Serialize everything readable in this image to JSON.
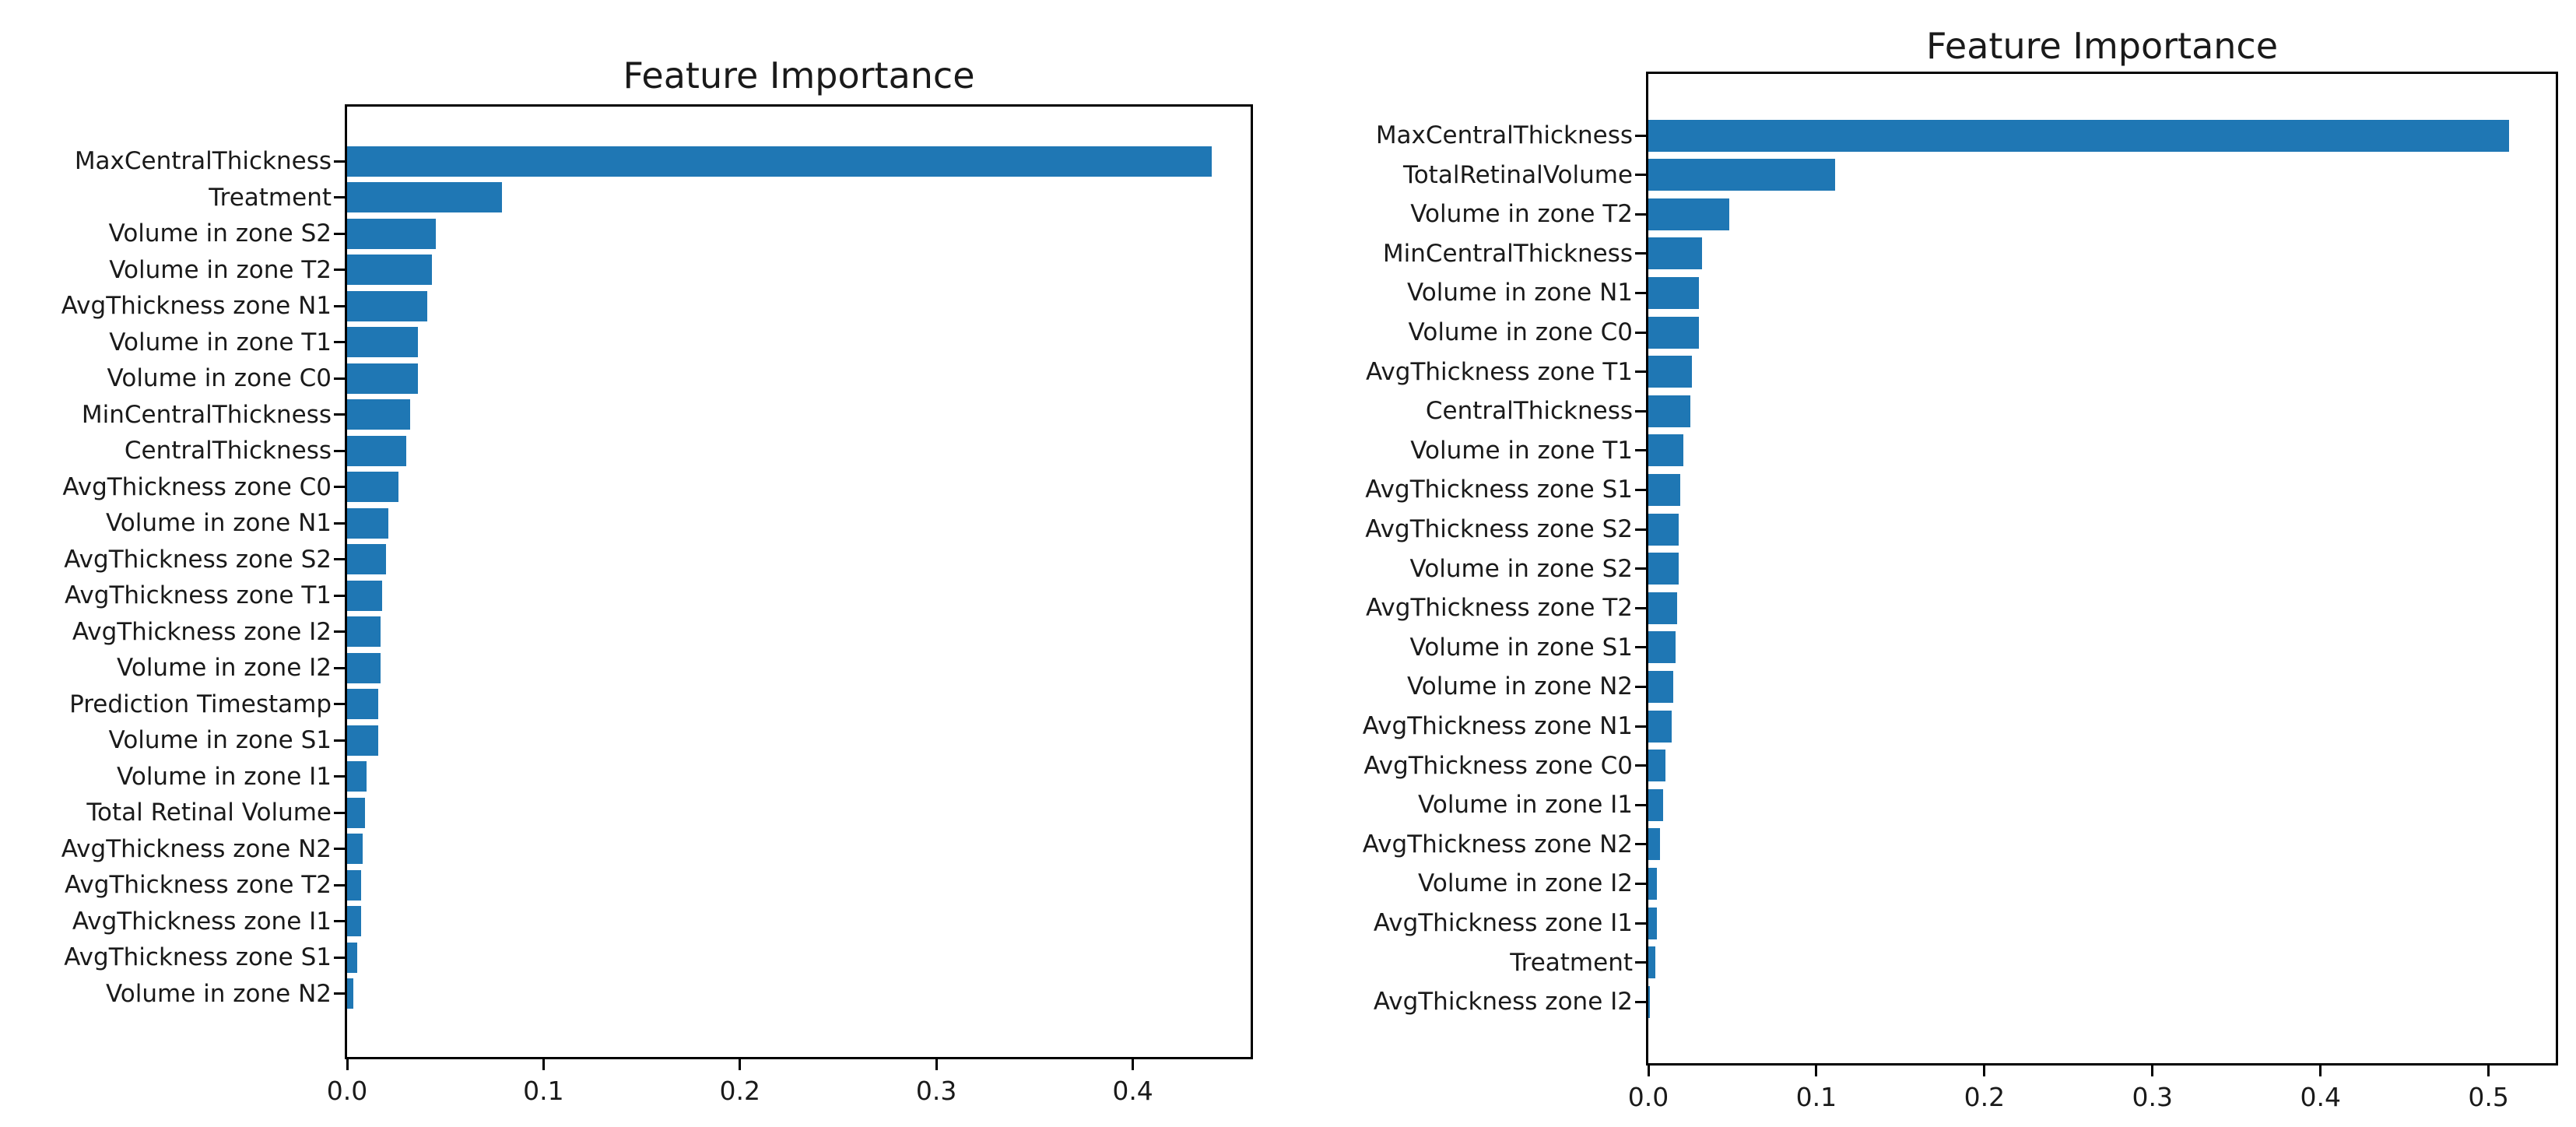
{
  "figure": {
    "background": "#ffffff",
    "text_color": "#1a1a1a",
    "spine_color": "#000000"
  },
  "chart_data": [
    {
      "type": "bar",
      "orientation": "horizontal",
      "title": "Feature Importance",
      "bar_color": "#1f77b4",
      "grid": false,
      "legend": null,
      "categories": [
        "MaxCentralThickness",
        "Treatment",
        "Volume in zone S2",
        "Volume in zone T2",
        "AvgThickness zone N1",
        "Volume in zone T1",
        "Volume in zone C0",
        "MinCentralThickness",
        "CentralThickness",
        "AvgThickness zone C0",
        "Volume in zone N1",
        "AvgThickness zone S2",
        "AvgThickness zone T1",
        "AvgThickness zone I2",
        "Volume in zone I2",
        "Prediction Timestamp",
        "Volume in zone S1",
        "Volume in zone I1",
        "Total Retinal Volume",
        "AvgThickness zone N2",
        "AvgThickness zone T2",
        "AvgThickness zone I1",
        "AvgThickness zone S1",
        "Volume in zone N2"
      ],
      "values": [
        0.44,
        0.079,
        0.045,
        0.043,
        0.041,
        0.036,
        0.036,
        0.032,
        0.03,
        0.026,
        0.021,
        0.02,
        0.018,
        0.017,
        0.017,
        0.016,
        0.016,
        0.01,
        0.009,
        0.008,
        0.007,
        0.007,
        0.005,
        0.003
      ],
      "xticks": [
        0.0,
        0.1,
        0.2,
        0.3,
        0.4
      ],
      "xtick_labels": [
        "0.0",
        "0.1",
        "0.2",
        "0.3",
        "0.4"
      ],
      "xlim": [
        0,
        0.46
      ],
      "xlabel": "",
      "ylabel": ""
    },
    {
      "type": "bar",
      "orientation": "horizontal",
      "title": "Feature Importance",
      "bar_color": "#1f77b4",
      "grid": false,
      "legend": null,
      "categories": [
        "MaxCentralThickness",
        "TotalRetinalVolume",
        "Volume in zone T2",
        "MinCentralThickness",
        "Volume in zone N1",
        "Volume in zone C0",
        "AvgThickness zone T1",
        "CentralThickness",
        "Volume in zone T1",
        "AvgThickness zone S1",
        "AvgThickness zone S2",
        "Volume in zone S2",
        "AvgThickness zone T2",
        "Volume in zone S1",
        "Volume in zone N2",
        "AvgThickness zone N1",
        "AvgThickness zone C0",
        "Volume in zone I1",
        "AvgThickness zone N2",
        "Volume in zone I2",
        "AvgThickness zone I1",
        "Treatment",
        "AvgThickness zone I2"
      ],
      "values": [
        0.512,
        0.111,
        0.048,
        0.032,
        0.03,
        0.03,
        0.026,
        0.025,
        0.021,
        0.019,
        0.018,
        0.018,
        0.017,
        0.016,
        0.015,
        0.014,
        0.01,
        0.009,
        0.007,
        0.005,
        0.005,
        0.004,
        0.001
      ],
      "xticks": [
        0.0,
        0.1,
        0.2,
        0.3,
        0.4,
        0.5
      ],
      "xtick_labels": [
        "0.0",
        "0.1",
        "0.2",
        "0.3",
        "0.4",
        "0.5"
      ],
      "xlim": [
        0,
        0.54
      ],
      "xlabel": "",
      "ylabel": ""
    }
  ]
}
